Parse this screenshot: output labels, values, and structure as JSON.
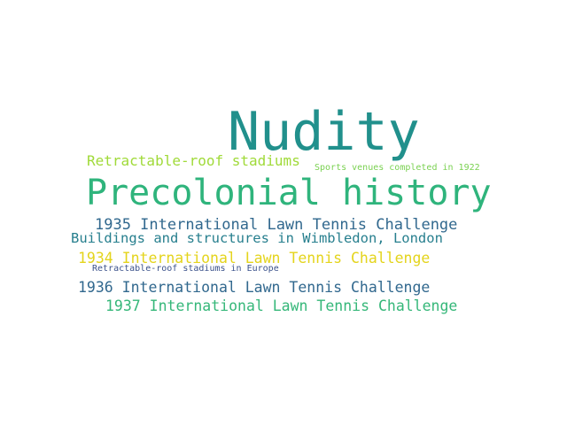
{
  "words": [
    {
      "text": "Nudity",
      "color": "#21908c"
    },
    {
      "text": "Precolonial history",
      "color": "#2fb47c"
    },
    {
      "text": "Retractable-roof stadiums",
      "color": "#a0da39"
    },
    {
      "text": "Sports venues completed in 1922",
      "color": "#7ad151"
    },
    {
      "text": "1935 International Lawn Tennis Challenge",
      "color": "#31688e"
    },
    {
      "text": "Buildings and structures in Wimbledon, London",
      "color": "#277f8e"
    },
    {
      "text": "1934 International Lawn Tennis Challenge",
      "color": "#e4d41c"
    },
    {
      "text": "Retractable-roof stadiums in Europe",
      "color": "#3b528b"
    },
    {
      "text": "1936 International Lawn Tennis Challenge",
      "color": "#31688e"
    },
    {
      "text": "1937 International Lawn Tennis Challenge",
      "color": "#35b779"
    }
  ]
}
